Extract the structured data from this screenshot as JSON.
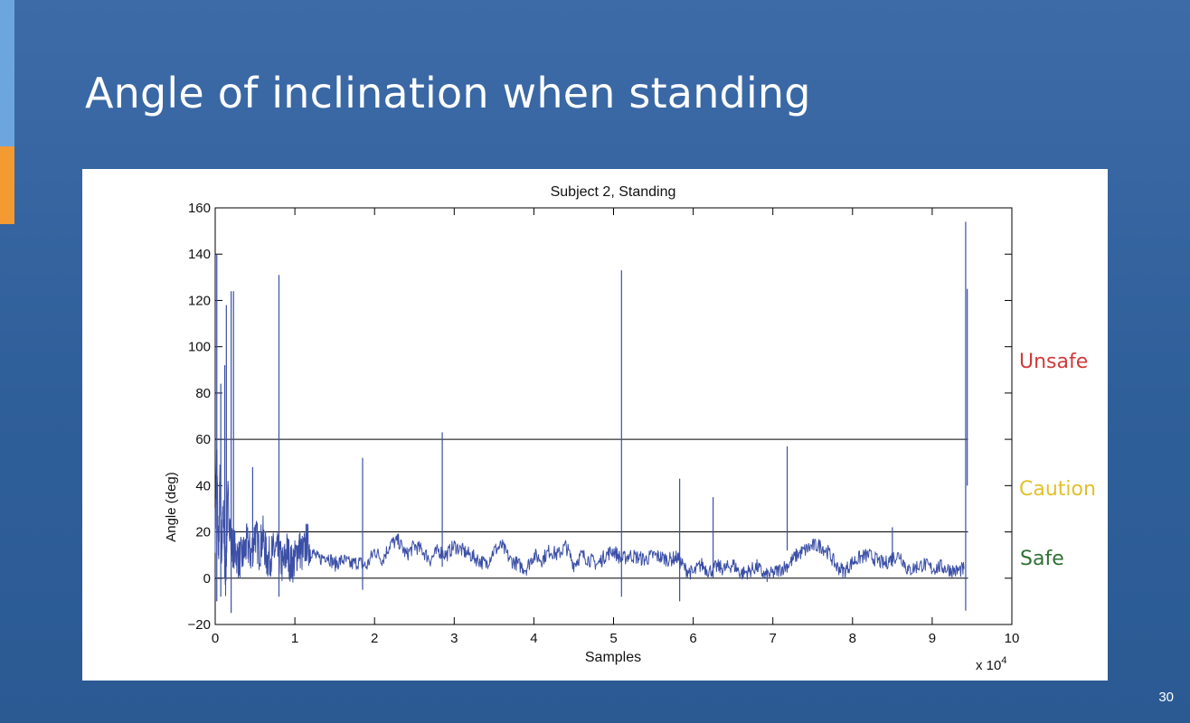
{
  "slide": {
    "title": "Angle of inclination when standing",
    "page_number": "30",
    "accent_colors": {
      "blue": "#6da6de",
      "orange": "#f39a33"
    }
  },
  "zones": [
    {
      "label": "Unsafe",
      "color": "#d23a3a"
    },
    {
      "label": "Caution",
      "color": "#e2c02a"
    },
    {
      "label": "Safe",
      "color": "#2f7034"
    }
  ],
  "chart_data": {
    "type": "line",
    "title": "Subject 2, Standing",
    "xlabel": "Samples",
    "ylabel": "Angle (deg)",
    "x_multiplier": "x 10",
    "x_multiplier_exponent": "4",
    "xlim": [
      0,
      10
    ],
    "ylim": [
      -20,
      160
    ],
    "x_ticks": [
      0,
      1,
      2,
      3,
      4,
      5,
      6,
      7,
      8,
      9,
      10
    ],
    "y_ticks": [
      -20,
      0,
      20,
      40,
      60,
      80,
      100,
      120,
      140,
      160
    ],
    "y_tick_labels": [
      "−20",
      "0",
      "20",
      "40",
      "60",
      "80",
      "100",
      "120",
      "140",
      "160"
    ],
    "line_color": "#3b4fa6",
    "threshold_lines": [
      {
        "y": 0,
        "x_range": [
          0,
          9.45
        ]
      },
      {
        "y": 20,
        "x_range": [
          0,
          9.45
        ]
      },
      {
        "y": 60,
        "x_range": [
          0,
          9.45
        ]
      }
    ],
    "series": [
      {
        "x": [
          0,
          0.02,
          0.04,
          0.06,
          0.08,
          0.1,
          0.13,
          0.16,
          0.2,
          0.25,
          0.3,
          0.35,
          0.4,
          0.45,
          0.5,
          0.55,
          0.6,
          0.65,
          0.7,
          0.75,
          0.8,
          0.85,
          0.9,
          0.95,
          1.0,
          1.05,
          1.1,
          1.15,
          1.2,
          1.3,
          1.4,
          1.5,
          1.6,
          1.7,
          1.8,
          1.9,
          2.0,
          2.1,
          2.2,
          2.3,
          2.4,
          2.5,
          2.6,
          2.7,
          2.8,
          2.9,
          3.0,
          3.1,
          3.2,
          3.3,
          3.4,
          3.5,
          3.6,
          3.7,
          3.8,
          3.9,
          4.0,
          4.1,
          4.2,
          4.3,
          4.4,
          4.5,
          4.6,
          4.7,
          4.8,
          4.9,
          5.0,
          5.1,
          5.2,
          5.3,
          5.4,
          5.5,
          5.6,
          5.7,
          5.8,
          5.9,
          6.0,
          6.1,
          6.2,
          6.3,
          6.4,
          6.5,
          6.6,
          6.7,
          6.8,
          6.9,
          7.0,
          7.1,
          7.2,
          7.3,
          7.4,
          7.5,
          7.6,
          7.7,
          7.8,
          7.9,
          8.0,
          8.1,
          8.2,
          8.3,
          8.4,
          8.5,
          8.6,
          8.7,
          8.8,
          8.9,
          9.0,
          9.1,
          9.2,
          9.3,
          9.4
        ],
        "y": [
          20,
          55,
          5,
          45,
          10,
          30,
          0,
          35,
          15,
          12,
          8,
          10,
          15,
          10,
          20,
          12,
          18,
          8,
          10,
          12,
          10,
          5,
          12,
          6,
          8,
          14,
          10,
          16,
          12,
          8,
          10,
          6,
          8,
          6,
          7,
          5,
          12,
          8,
          15,
          16,
          10,
          14,
          12,
          8,
          12,
          10,
          14,
          12,
          10,
          8,
          6,
          12,
          14,
          8,
          6,
          4,
          10,
          8,
          12,
          10,
          14,
          6,
          10,
          8,
          6,
          10,
          12,
          8,
          10,
          9,
          8,
          10,
          9,
          8,
          9,
          4,
          2,
          6,
          3,
          5,
          4,
          6,
          2,
          3,
          5,
          1,
          2,
          4,
          6,
          10,
          12,
          14,
          14,
          11,
          5,
          3,
          7,
          9,
          10,
          8,
          6,
          9,
          10,
          3,
          5,
          6,
          4,
          5,
          4,
          3,
          4
        ]
      }
    ],
    "spikes": [
      {
        "x": 0.02,
        "low": -10,
        "high": 140
      },
      {
        "x": 0.07,
        "low": -8,
        "high": 84
      },
      {
        "x": 0.12,
        "low": 0,
        "high": 92
      },
      {
        "x": 0.14,
        "low": 5,
        "high": 118
      },
      {
        "x": 0.2,
        "low": -15,
        "high": 124
      },
      {
        "x": 0.23,
        "low": 5,
        "high": 124
      },
      {
        "x": 0.47,
        "low": 5,
        "high": 48
      },
      {
        "x": 0.8,
        "low": -8,
        "high": 131
      },
      {
        "x": 1.85,
        "low": -5,
        "high": 52
      },
      {
        "x": 2.85,
        "low": 5,
        "high": 63
      },
      {
        "x": 5.1,
        "low": -8,
        "high": 133
      },
      {
        "x": 5.83,
        "low": -10,
        "high": 43
      },
      {
        "x": 6.25,
        "low": 0,
        "high": 35
      },
      {
        "x": 7.18,
        "low": 12,
        "high": 57
      },
      {
        "x": 8.5,
        "low": 5,
        "high": 22
      },
      {
        "x": 9.42,
        "low": -14,
        "high": 154
      },
      {
        "x": 9.44,
        "low": 40,
        "high": 125
      }
    ]
  }
}
